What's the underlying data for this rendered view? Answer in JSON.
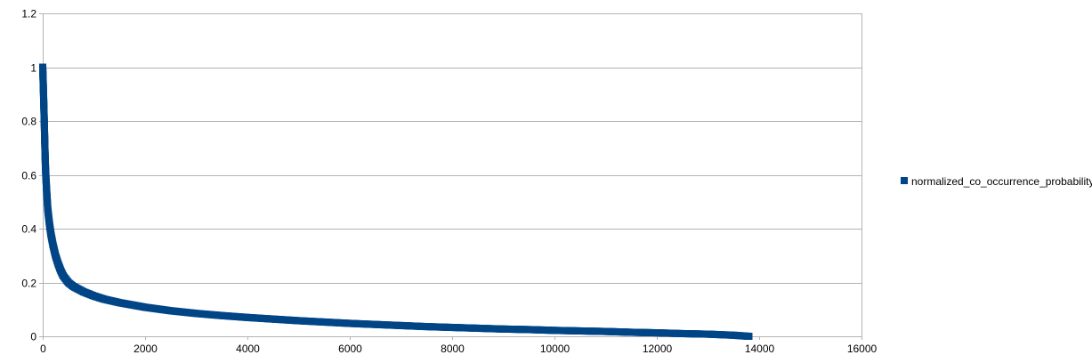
{
  "chart_data": {
    "type": "scatter",
    "title": "",
    "xlabel": "",
    "ylabel": "",
    "xlim": [
      0,
      16000
    ],
    "ylim": [
      0,
      1.2
    ],
    "x_ticks": [
      0,
      2000,
      4000,
      6000,
      8000,
      10000,
      12000,
      14000,
      16000
    ],
    "y_ticks": [
      0,
      0.2,
      0.4,
      0.6,
      0.8,
      1,
      1.2
    ],
    "x_tick_labels": [
      "0",
      "2000",
      "4000",
      "6000",
      "8000",
      "10000",
      "12000",
      "14000",
      "16000"
    ],
    "y_tick_labels": [
      "0",
      "0.2",
      "0.4",
      "0.6",
      "0.8",
      "1",
      "1.2"
    ],
    "grid": "horizontal",
    "legend_position": "right",
    "series": [
      {
        "name": "normalized_co_occurrence_probability",
        "color": "#004586",
        "marker": "square",
        "points": [
          [
            0,
            1.0
          ],
          [
            10,
            0.94
          ],
          [
            20,
            0.87
          ],
          [
            30,
            0.8
          ],
          [
            40,
            0.72
          ],
          [
            50,
            0.65
          ],
          [
            60,
            0.6
          ],
          [
            80,
            0.53
          ],
          [
            100,
            0.47
          ],
          [
            130,
            0.42
          ],
          [
            160,
            0.38
          ],
          [
            200,
            0.34
          ],
          [
            250,
            0.3
          ],
          [
            300,
            0.27
          ],
          [
            350,
            0.245
          ],
          [
            400,
            0.225
          ],
          [
            500,
            0.2
          ],
          [
            600,
            0.185
          ],
          [
            700,
            0.175
          ],
          [
            800,
            0.165
          ],
          [
            1000,
            0.15
          ],
          [
            1200,
            0.138
          ],
          [
            1500,
            0.125
          ],
          [
            2000,
            0.108
          ],
          [
            2500,
            0.095
          ],
          [
            3000,
            0.085
          ],
          [
            3500,
            0.077
          ],
          [
            4000,
            0.07
          ],
          [
            4500,
            0.064
          ],
          [
            5000,
            0.058
          ],
          [
            5500,
            0.053
          ],
          [
            6000,
            0.048
          ],
          [
            6500,
            0.044
          ],
          [
            7000,
            0.04
          ],
          [
            7500,
            0.036
          ],
          [
            8000,
            0.033
          ],
          [
            8500,
            0.03
          ],
          [
            9000,
            0.027
          ],
          [
            9500,
            0.025
          ],
          [
            10000,
            0.022
          ],
          [
            10500,
            0.02
          ],
          [
            11000,
            0.018
          ],
          [
            11500,
            0.015
          ],
          [
            12000,
            0.013
          ],
          [
            12500,
            0.01
          ],
          [
            13000,
            0.008
          ],
          [
            13500,
            0.004
          ],
          [
            13800,
            0.0
          ]
        ]
      }
    ]
  }
}
